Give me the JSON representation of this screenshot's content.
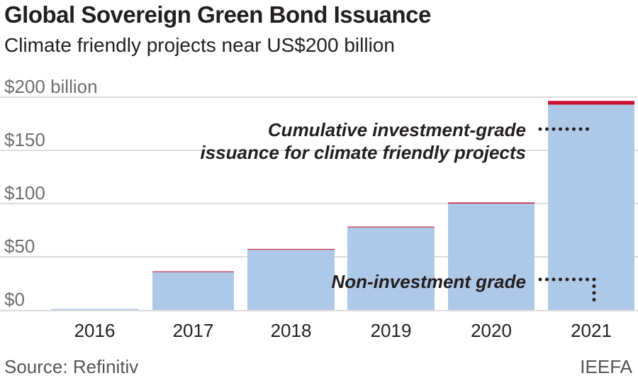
{
  "chart_data": {
    "type": "bar",
    "title": "Global Sovereign Green Bond Issuance",
    "subtitle": "Climate friendly projects near US$200 billion",
    "categories": [
      "2016",
      "2017",
      "2018",
      "2019",
      "2020",
      "2021"
    ],
    "series": [
      {
        "key": "investment_grade",
        "values": [
          1,
          36,
          57,
          78,
          100,
          193
        ],
        "color": "#aec8e8"
      },
      {
        "key": "non_investment_grade",
        "values": [
          0,
          0.3,
          0.3,
          0.3,
          1,
          3.5
        ],
        "color": "#c8102e"
      }
    ],
    "stacked": true,
    "ylim": [
      0,
      200
    ],
    "yticks": [
      {
        "value": 0,
        "label": "$0"
      },
      {
        "value": 50,
        "label": "$50"
      },
      {
        "value": 100,
        "label": "$100"
      },
      {
        "value": 150,
        "label": "$150"
      },
      {
        "value": 200,
        "label": "$200 billion"
      }
    ],
    "grid": true,
    "annotations": [
      {
        "lines": [
          "Cumulative investment-grade",
          "issuance for climate friendly projects"
        ]
      },
      {
        "lines": [
          "Non-investment grade"
        ]
      }
    ],
    "source": "Source: Refinitiv",
    "credit": "IEEFA"
  }
}
